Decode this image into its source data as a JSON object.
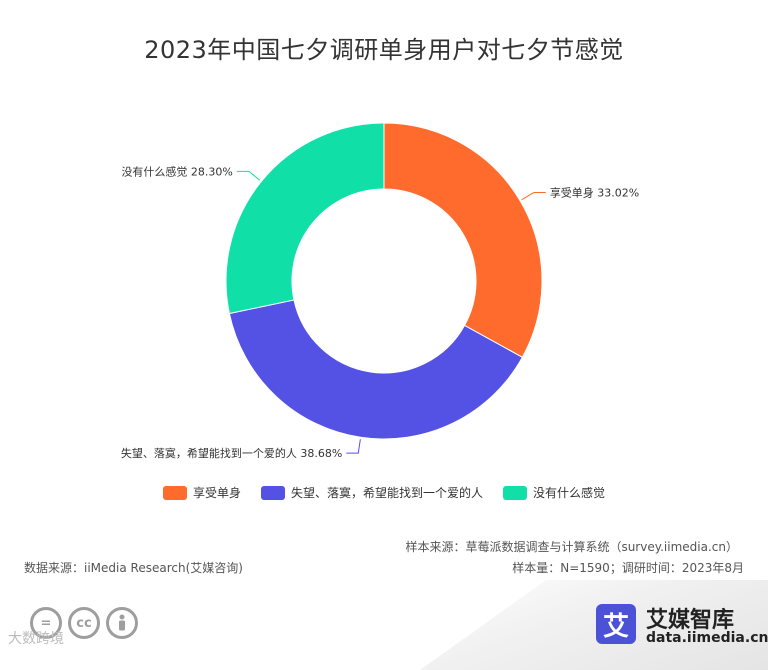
{
  "title": "2023年中国七夕调研单身用户对七夕节感觉",
  "chart_data": {
    "type": "pie",
    "variant": "donut",
    "title": "2023年中国七夕调研单身用户对七夕节感觉",
    "categories": [
      "享受单身",
      "失望、落寞，希望能找到一个爱的人",
      "没有什么感觉"
    ],
    "values": [
      33.02,
      38.68,
      28.3
    ],
    "labels": [
      "享受单身 33.02%",
      "失望、落寞，希望能找到一个爱的人 38.68%",
      "没有什么感觉 28.30%"
    ],
    "colors": [
      "#ff6b2c",
      "#5451e5",
      "#10e0a8"
    ],
    "legend_position": "bottom"
  },
  "legend": [
    {
      "label": "享受单身",
      "color": "#ff6b2c"
    },
    {
      "label": "失望、落寞，希望能找到一个爱的人",
      "color": "#5451e5"
    },
    {
      "label": "没有什么感觉",
      "color": "#10e0a8"
    }
  ],
  "footer": {
    "sample_source": "样本来源：草莓派数据调查与计算系统（survey.iimedia.cn）",
    "sample_size": "样本量：N=1590；调研时间：2023年8月",
    "data_source": "数据来源：iiMedia Research(艾媒咨询)"
  },
  "branding": {
    "logo_char": "艾",
    "name": "艾媒智库",
    "url": "data.iimedia.cn",
    "watermark": "大数跨境",
    "cc_icons": [
      "equals-icon",
      "cc-icon",
      "person-icon"
    ]
  }
}
